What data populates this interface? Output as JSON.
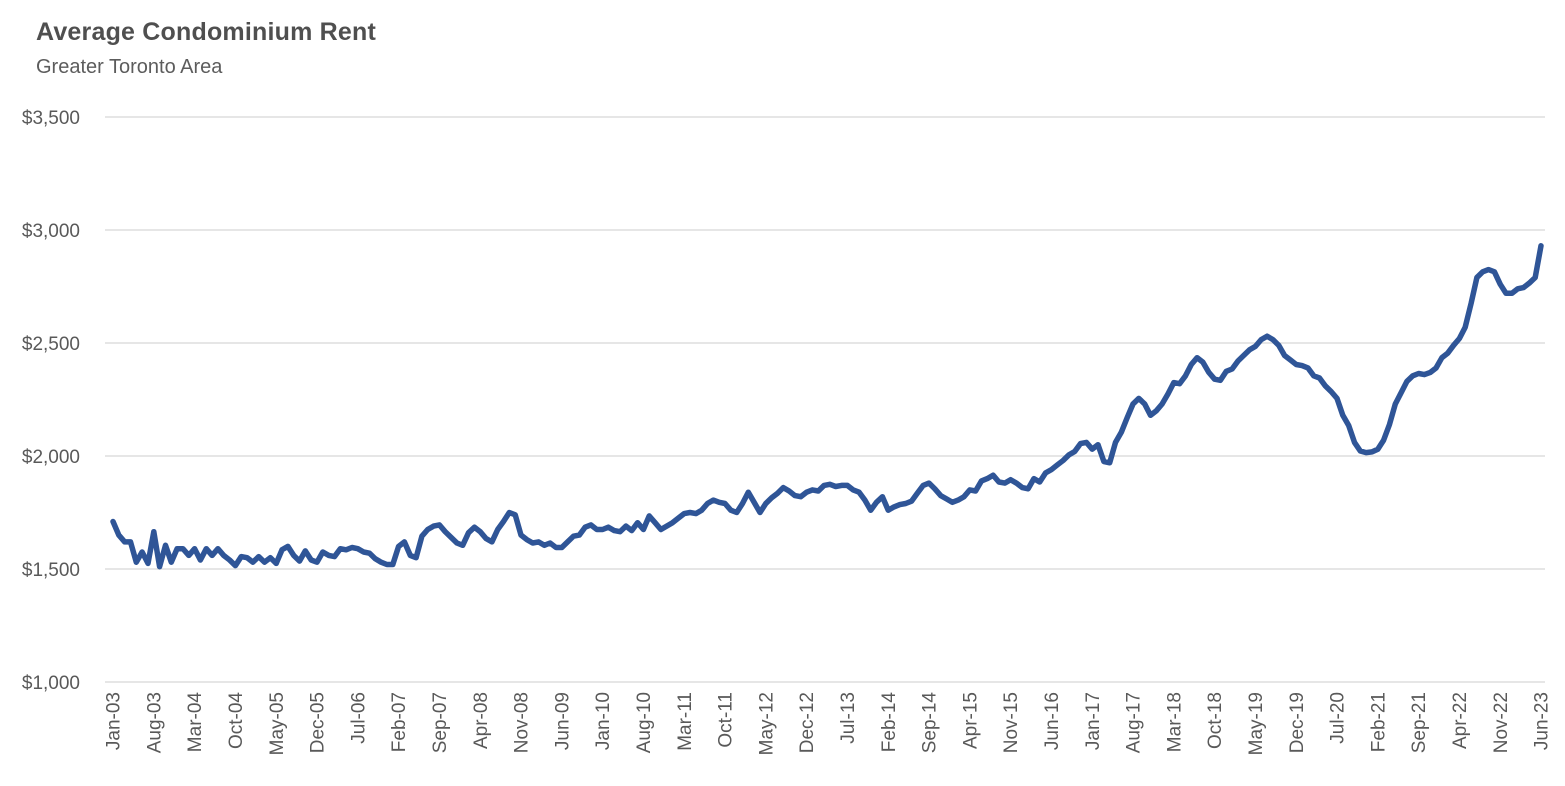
{
  "header": {
    "title": "Average Condominium Rent",
    "subtitle": "Greater Toronto Area"
  },
  "chart_data": {
    "type": "line",
    "title": "Average Condominium Rent",
    "subtitle": "Greater Toronto Area",
    "xlabel": "",
    "ylabel": "",
    "x_start": "Jan-03",
    "x_end": "Jun-23",
    "x_frequency": "monthly",
    "x_tick_interval_months": 7,
    "x_tick_labels": [
      "Jan-03",
      "Aug-03",
      "Mar-04",
      "Oct-04",
      "May-05",
      "Dec-05",
      "Jul-06",
      "Feb-07",
      "Sep-07",
      "Apr-08",
      "Nov-08",
      "Jun-09",
      "Jan-10",
      "Aug-10",
      "Mar-11",
      "Oct-11",
      "May-12",
      "Dec-12",
      "Jul-13",
      "Feb-14",
      "Sep-14",
      "Apr-15",
      "Nov-15",
      "Jun-16",
      "Jan-17",
      "Aug-17",
      "Mar-18",
      "Oct-18",
      "May-19",
      "Dec-19",
      "Jul-20",
      "Feb-21",
      "Sep-21",
      "Apr-22",
      "Nov-22",
      "Jun-23"
    ],
    "ylim": [
      1000,
      3500
    ],
    "y_tick_values": [
      3500,
      3000,
      2500,
      2000,
      1500,
      1000
    ],
    "y_tick_labels": [
      "$3,500",
      "$3,000",
      "$2,500",
      "$2,000",
      "$1,500",
      "$1,000"
    ],
    "grid": "horizontal",
    "legend": "none",
    "line_color": "#2F5597",
    "gridline_color": "#D6D6D6",
    "axis_label_color": "#595959",
    "series": [
      {
        "name": "Average condominium rent ($)",
        "values": [
          1710,
          1650,
          1620,
          1620,
          1530,
          1575,
          1525,
          1665,
          1510,
          1605,
          1530,
          1590,
          1590,
          1560,
          1590,
          1540,
          1590,
          1560,
          1590,
          1560,
          1540,
          1515,
          1555,
          1550,
          1530,
          1555,
          1530,
          1550,
          1525,
          1585,
          1600,
          1560,
          1535,
          1580,
          1540,
          1530,
          1575,
          1560,
          1555,
          1590,
          1585,
          1595,
          1590,
          1575,
          1570,
          1545,
          1530,
          1520,
          1520,
          1600,
          1620,
          1560,
          1550,
          1645,
          1675,
          1690,
          1695,
          1665,
          1640,
          1615,
          1605,
          1660,
          1685,
          1665,
          1635,
          1620,
          1675,
          1710,
          1750,
          1740,
          1650,
          1630,
          1615,
          1620,
          1605,
          1615,
          1595,
          1595,
          1620,
          1645,
          1650,
          1685,
          1695,
          1675,
          1675,
          1685,
          1670,
          1665,
          1690,
          1670,
          1705,
          1675,
          1735,
          1705,
          1675,
          1690,
          1705,
          1725,
          1745,
          1750,
          1745,
          1760,
          1790,
          1805,
          1795,
          1790,
          1760,
          1750,
          1790,
          1840,
          1795,
          1750,
          1790,
          1815,
          1835,
          1860,
          1845,
          1825,
          1820,
          1840,
          1850,
          1845,
          1870,
          1875,
          1865,
          1870,
          1870,
          1850,
          1840,
          1805,
          1760,
          1795,
          1820,
          1760,
          1775,
          1785,
          1790,
          1800,
          1835,
          1870,
          1880,
          1855,
          1825,
          1810,
          1795,
          1805,
          1820,
          1850,
          1845,
          1890,
          1900,
          1915,
          1885,
          1880,
          1895,
          1880,
          1860,
          1855,
          1900,
          1885,
          1925,
          1940,
          1960,
          1980,
          2005,
          2020,
          2055,
          2060,
          2030,
          2050,
          1975,
          1970,
          2060,
          2105,
          2170,
          2230,
          2255,
          2230,
          2180,
          2200,
          2230,
          2275,
          2325,
          2320,
          2355,
          2405,
          2435,
          2415,
          2370,
          2340,
          2335,
          2375,
          2385,
          2420,
          2445,
          2470,
          2485,
          2515,
          2530,
          2515,
          2490,
          2445,
          2425,
          2405,
          2400,
          2390,
          2355,
          2345,
          2310,
          2285,
          2255,
          2180,
          2135,
          2060,
          2022,
          2015,
          2018,
          2030,
          2070,
          2140,
          2230,
          2280,
          2330,
          2355,
          2365,
          2360,
          2370,
          2390,
          2435,
          2455,
          2490,
          2520,
          2570,
          2675,
          2790,
          2815,
          2825,
          2815,
          2760,
          2720,
          2720,
          2740,
          2745,
          2765,
          2790,
          2930
        ]
      }
    ]
  }
}
